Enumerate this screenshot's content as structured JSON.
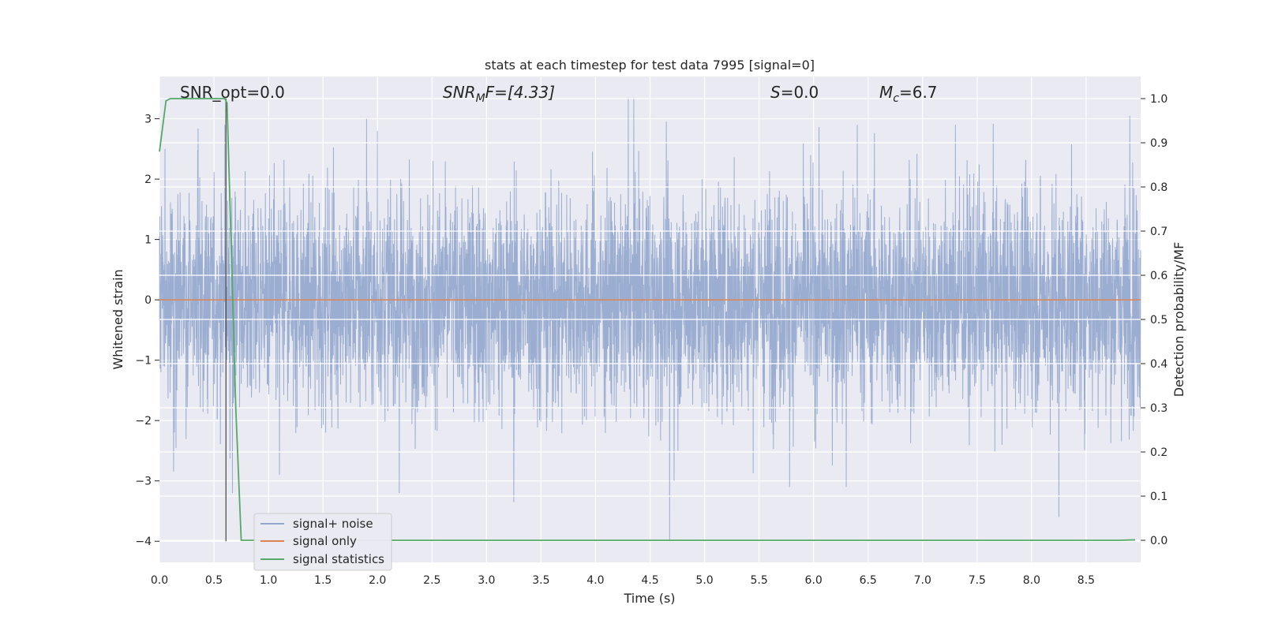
{
  "chart_data": {
    "type": "line",
    "title": "stats at each timestep for test data 7995 [signal=0]",
    "xlabel": "Time (s)",
    "ylabel": "Whitened strain",
    "y2label": "Detection probability/MF",
    "xlim": [
      0.0,
      9.0
    ],
    "ylim": [
      -4.35,
      3.7
    ],
    "y2lim": [
      -0.05,
      1.05
    ],
    "x_ticks": [
      "0.0",
      "0.5",
      "1.0",
      "1.5",
      "2.0",
      "2.5",
      "3.0",
      "3.5",
      "4.0",
      "4.5",
      "5.0",
      "5.5",
      "6.0",
      "6.5",
      "7.0",
      "7.5",
      "8.0",
      "8.5"
    ],
    "y_ticks": [
      "3",
      "2",
      "1",
      "0",
      "−1",
      "−2",
      "−3",
      "−4"
    ],
    "y2_ticks": [
      "1.0",
      "0.9",
      "0.8",
      "0.7",
      "0.6",
      "0.5",
      "0.4",
      "0.3",
      "0.2",
      "0.1",
      "0.0"
    ],
    "grid": true,
    "legend_position": "lower-left",
    "annotations": {
      "snr_opt": "SNR_opt=0.0",
      "snr_mf_prefix": "SNR",
      "snr_mf_sub": "M",
      "snr_mf_suffix": "F=[4.33]",
      "s_prefix": "S",
      "s_suffix": "=0.0",
      "mc_prefix": "M",
      "mc_sub": "c",
      "mc_suffix": "=6.7"
    },
    "marker_line_x": 0.61,
    "series": [
      {
        "name": "signal+ noise",
        "color": "#4c72b0",
        "description_stats": {
          "y_min": -4.0,
          "y_max": 3.35,
          "typical_range": [
            -1.9,
            2.0
          ]
        },
        "peaks": [
          {
            "x": 0.05,
            "y": 2.5
          },
          {
            "x": 0.6,
            "y": 2.9
          },
          {
            "x": 0.67,
            "y": -3.2
          },
          {
            "x": 1.1,
            "y": -2.9
          },
          {
            "x": 1.9,
            "y": 3.0
          },
          {
            "x": 2.0,
            "y": 2.8
          },
          {
            "x": 2.2,
            "y": -3.2
          },
          {
            "x": 3.25,
            "y": -3.35
          },
          {
            "x": 4.3,
            "y": 3.35
          },
          {
            "x": 4.35,
            "y": 3.35
          },
          {
            "x": 4.65,
            "y": 2.95
          },
          {
            "x": 4.68,
            "y": -4.0
          },
          {
            "x": 4.72,
            "y": -3.0
          },
          {
            "x": 5.78,
            "y": -3.1
          },
          {
            "x": 6.3,
            "y": -3.1
          },
          {
            "x": 6.4,
            "y": 2.9
          },
          {
            "x": 7.3,
            "y": 2.9
          },
          {
            "x": 8.25,
            "y": -3.6
          },
          {
            "x": 8.9,
            "y": 3.05
          }
        ]
      },
      {
        "name": "signal only",
        "color": "#dd8452",
        "x": [
          0.0,
          9.0
        ],
        "y": [
          0.0,
          0.0
        ]
      },
      {
        "name": "signal statistics",
        "color": "#55a868",
        "axis": "right",
        "x": [
          0.0,
          0.06,
          0.1,
          0.2,
          0.3,
          0.4,
          0.5,
          0.6,
          0.62,
          0.66,
          0.7,
          0.75,
          1.0,
          2.0,
          3.0,
          4.0,
          5.0,
          6.0,
          7.0,
          7.5,
          8.0,
          8.5,
          8.8,
          8.95
        ],
        "y": [
          0.88,
          0.995,
          1.0,
          1.0,
          1.0,
          1.0,
          1.0,
          1.0,
          0.99,
          0.65,
          0.3,
          0.0,
          0.0,
          0.0,
          0.0,
          0.0,
          0.0,
          0.0,
          0.0,
          0.0,
          0.0,
          0.0,
          0.0,
          0.001
        ]
      }
    ]
  }
}
